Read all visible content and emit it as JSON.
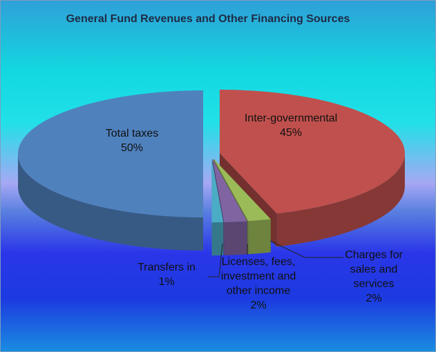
{
  "chart_data": {
    "type": "pie",
    "title": "General Fund Revenues and Other Financing Sources",
    "categories": [
      "Inter-governmental",
      "Charges for sales and services",
      "Licenses, fees, investment and other income",
      "Transfers in",
      "Total taxes"
    ],
    "values": [
      45,
      2,
      2,
      1,
      50
    ],
    "value_labels": [
      "45%",
      "2%",
      "2%",
      "1%",
      "50%"
    ],
    "colors": [
      "#c0504d",
      "#9bbb59",
      "#8064a2",
      "#4bacc6",
      "#4f81bd"
    ]
  }
}
